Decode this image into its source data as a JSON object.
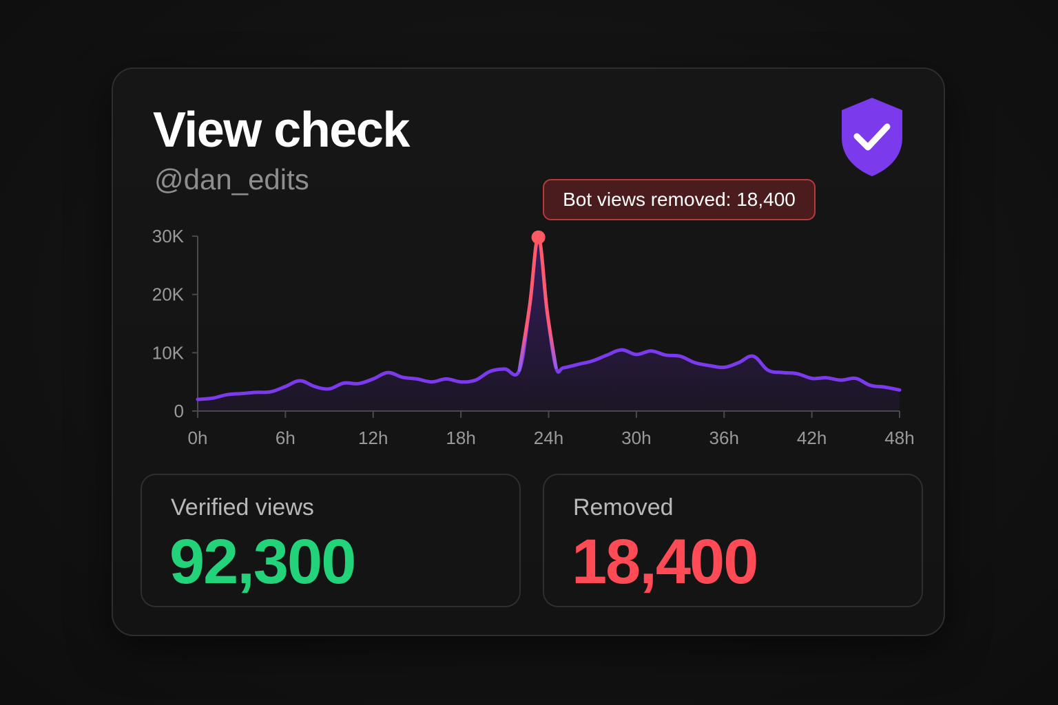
{
  "card": {
    "title": "View check",
    "handle": "@dan_edits",
    "badge_icon": "shield-check-icon",
    "callout": "Bot views removed: 18,400"
  },
  "stats": {
    "verified": {
      "label": "Verified views",
      "value": "92,300",
      "color": "#22d37a"
    },
    "removed": {
      "label": "Removed",
      "value": "18,400",
      "color": "#ff4b55"
    }
  },
  "colors": {
    "series": "#7c3aed",
    "spike": "#ff5a63",
    "badge": "#7c3aed"
  },
  "chart_data": {
    "type": "area",
    "title": "",
    "xlabel": "",
    "ylabel": "",
    "x_ticks": [
      "0h",
      "6h",
      "12h",
      "18h",
      "24h",
      "30h",
      "36h",
      "42h",
      "48h"
    ],
    "y_ticks": [
      "0",
      "10K",
      "20K",
      "30K"
    ],
    "xlim": [
      0,
      48
    ],
    "ylim": [
      0,
      30000
    ],
    "grid": false,
    "series": [
      {
        "x": [
          0,
          1,
          2,
          3,
          4,
          5,
          6,
          7,
          8,
          9,
          10,
          11,
          12,
          13,
          14,
          15,
          16,
          17,
          18,
          19,
          20,
          21,
          22,
          22.7,
          23.3,
          23.9,
          24.5,
          25,
          26,
          27,
          28,
          29,
          30,
          31,
          32,
          33,
          34,
          35,
          36,
          37,
          38,
          39,
          40,
          41,
          42,
          43,
          44,
          45,
          46,
          47,
          48
        ],
        "values": [
          2000,
          2200,
          2800,
          3000,
          3200,
          3300,
          4200,
          5200,
          4200,
          3800,
          4800,
          4700,
          5500,
          6600,
          5800,
          5500,
          5000,
          5500,
          5000,
          5300,
          6800,
          7200,
          7000,
          18000,
          29800,
          17000,
          7500,
          7400,
          8000,
          8600,
          9600,
          10500,
          9700,
          10300,
          9600,
          9400,
          8300,
          7800,
          7500,
          8300,
          9400,
          7000,
          6600,
          6400,
          5600,
          5700,
          5300,
          5600,
          4400,
          4100,
          3600
        ]
      }
    ],
    "annotations": [
      {
        "text": "Bot views removed: 18,400",
        "x": 23.3,
        "y": 29800
      }
    ]
  }
}
